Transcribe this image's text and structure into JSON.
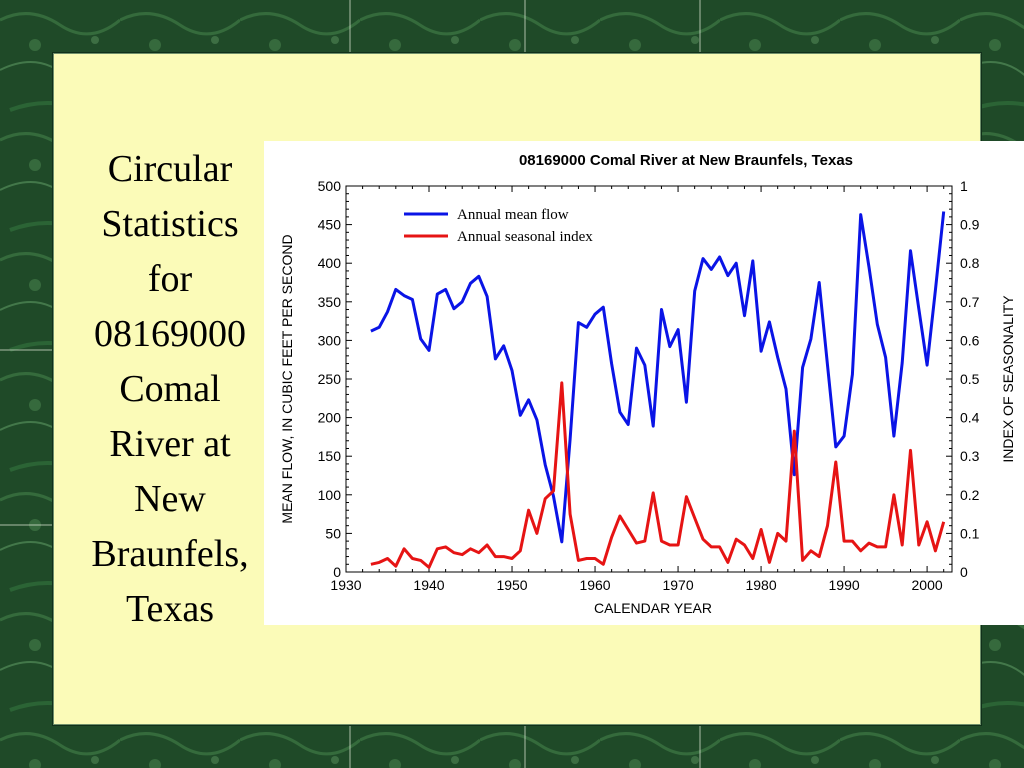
{
  "slide": {
    "title_lines": [
      "Circular",
      "Statistics",
      "for",
      "08169000",
      "Comal",
      "River at",
      "New",
      "Braunfels,",
      "Texas"
    ]
  },
  "colors": {
    "background": "#1f4a28",
    "panel": "#fbfbb8",
    "flow_line": "#0a14e6",
    "seasonal_line": "#e61414"
  },
  "chart_data": {
    "type": "line",
    "title": "08169000 Comal River at New Braunfels, Texas",
    "xlabel": "CALENDAR YEAR",
    "ylabel": "MEAN FLOW, IN CUBIC FEET PER SECOND",
    "y2label": "INDEX OF SEASONALITY",
    "xlim": [
      1930,
      2003
    ],
    "ylim": [
      0,
      500
    ],
    "y2lim": [
      0,
      1
    ],
    "x_ticks": [
      1930,
      1940,
      1950,
      1960,
      1970,
      1980,
      1990,
      2000
    ],
    "y_ticks": [
      0,
      50,
      100,
      150,
      200,
      250,
      300,
      350,
      400,
      450,
      500
    ],
    "y2_ticks": [
      "0",
      "0.1",
      "0.2",
      "0.3",
      "0.4",
      "0.5",
      "0.6",
      "0.7",
      "0.8",
      "0.9",
      "1"
    ],
    "grid": false,
    "legend_position": "top-left",
    "x": [
      1933,
      1934,
      1935,
      1936,
      1937,
      1938,
      1939,
      1940,
      1941,
      1942,
      1943,
      1944,
      1945,
      1946,
      1947,
      1948,
      1949,
      1950,
      1951,
      1952,
      1953,
      1954,
      1955,
      1956,
      1957,
      1958,
      1959,
      1960,
      1961,
      1962,
      1963,
      1964,
      1965,
      1966,
      1967,
      1968,
      1969,
      1970,
      1971,
      1972,
      1973,
      1974,
      1975,
      1976,
      1977,
      1978,
      1979,
      1980,
      1981,
      1982,
      1983,
      1984,
      1985,
      1986,
      1987,
      1988,
      1989,
      1990,
      1991,
      1992,
      1993,
      1994,
      1995,
      1996,
      1997,
      1998,
      1999,
      2000,
      2001,
      2002
    ],
    "series": [
      {
        "name": "Annual mean flow",
        "axis": "left",
        "color": "#0a14e6",
        "values": [
          312,
          317,
          337,
          366,
          358,
          353,
          302,
          287,
          360,
          366,
          341,
          350,
          374,
          383,
          357,
          276,
          293,
          261,
          203,
          223,
          197,
          139,
          98,
          39,
          172,
          323,
          317,
          334,
          343,
          270,
          207,
          191,
          290,
          268,
          189,
          340,
          292,
          314,
          220,
          364,
          406,
          392,
          408,
          384,
          400,
          332,
          403,
          286,
          324,
          278,
          237,
          126,
          265,
          302,
          375,
          268,
          162,
          176,
          256,
          463,
          395,
          321,
          278,
          176,
          271,
          416,
          341,
          268,
          365,
          467
        ]
      },
      {
        "name": "Annual seasonal index",
        "axis": "right",
        "color": "#e61414",
        "values": [
          0.02,
          0.025,
          0.035,
          0.015,
          0.06,
          0.035,
          0.03,
          0.012,
          0.06,
          0.065,
          0.05,
          0.045,
          0.06,
          0.05,
          0.07,
          0.04,
          0.04,
          0.035,
          0.055,
          0.16,
          0.1,
          0.19,
          0.21,
          0.49,
          0.15,
          0.03,
          0.035,
          0.035,
          0.02,
          0.09,
          0.145,
          0.11,
          0.075,
          0.08,
          0.205,
          0.08,
          0.07,
          0.07,
          0.195,
          0.14,
          0.085,
          0.065,
          0.065,
          0.025,
          0.085,
          0.07,
          0.035,
          0.11,
          0.025,
          0.1,
          0.08,
          0.365,
          0.03,
          0.055,
          0.04,
          0.12,
          0.285,
          0.08,
          0.08,
          0.055,
          0.075,
          0.065,
          0.065,
          0.2,
          0.07,
          0.315,
          0.07,
          0.13,
          0.055,
          0.13
        ]
      }
    ]
  }
}
